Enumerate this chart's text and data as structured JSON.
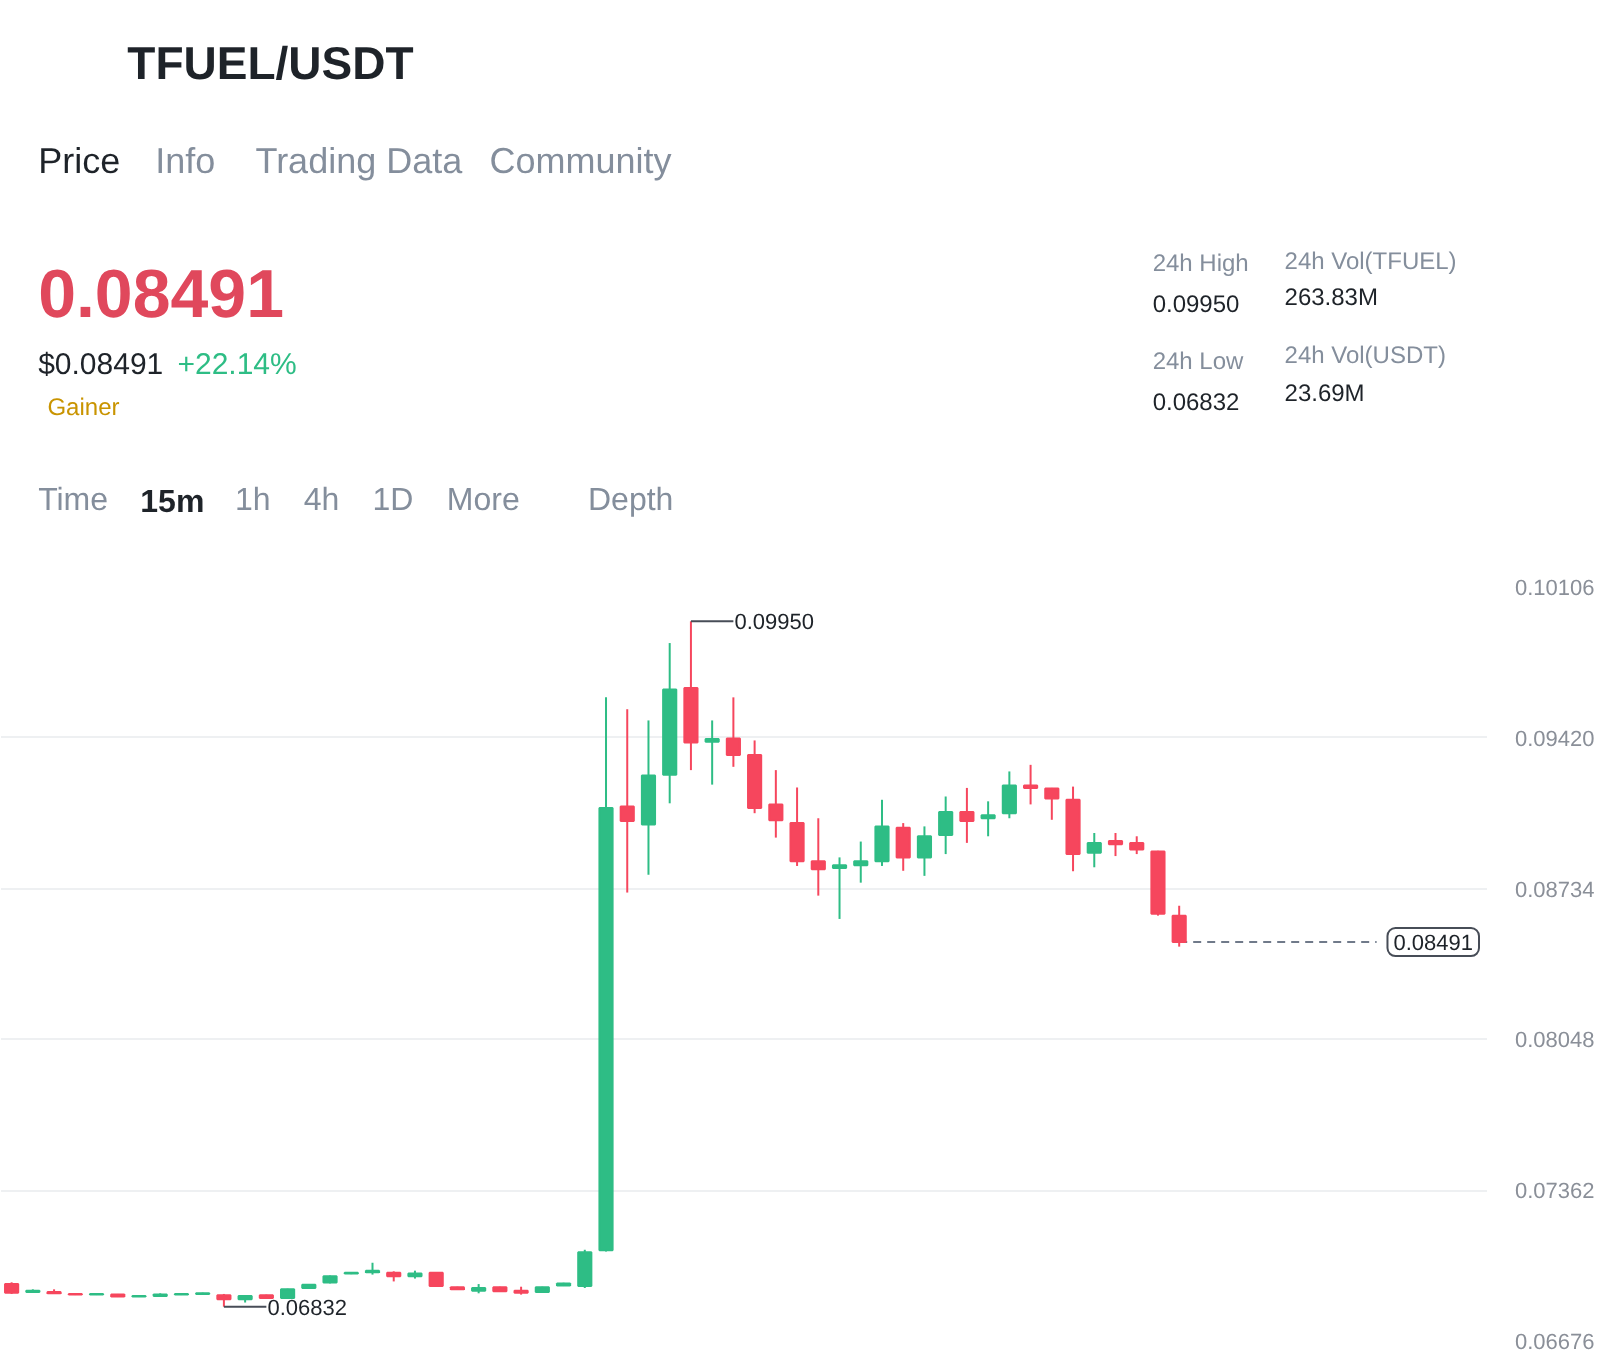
{
  "chart_data": {
    "type": "candlestick",
    "title": "TFUEL/USDT",
    "annotations": [
      "Price",
      "Info",
      "Trading Data",
      "Community",
      "0.08491",
      "$0.08491",
      "+22.14%",
      "Gainer",
      "24h High",
      "0.09950",
      "24h Low",
      "0.06832",
      "24h Vol(TFUEL)",
      "263.83M",
      "24h Vol(USDT)",
      "23.69M",
      "Time",
      "15m",
      "1h",
      "4h",
      "1D",
      "More",
      "Depth",
      "0.09950",
      "0.06832"
    ],
    "categories": [
      null,
      null,
      null,
      null,
      null,
      null,
      null,
      null,
      null,
      null,
      null,
      null,
      null,
      null,
      null,
      null,
      null,
      null,
      null,
      null,
      null,
      null,
      null,
      null,
      null,
      null,
      null,
      null,
      null,
      null,
      null,
      null,
      null,
      null,
      null,
      null,
      null,
      null,
      null,
      null,
      null,
      null,
      null,
      null,
      null,
      null,
      null,
      null,
      null,
      null,
      null,
      null,
      null,
      null,
      null,
      null,
      null,
      null,
      null,
      null,
      null,
      null,
      null,
      null,
      null,
      null,
      null,
      null,
      null,
      null
    ],
    "ohlc": [
      [
        0.06935,
        0.06943,
        0.0689,
        0.06896
      ],
      [
        0.06899,
        0.06911,
        0.06896,
        0.06905
      ],
      [
        0.06899,
        0.06911,
        0.0689,
        0.06893
      ],
      [
        0.0689,
        0.06893,
        0.06885,
        0.06887
      ],
      [
        0.06887,
        0.06893,
        0.06885,
        0.0689
      ],
      [
        0.06887,
        0.0689,
        0.06876,
        0.06878
      ],
      [
        0.06878,
        0.06885,
        0.06876,
        0.06881
      ],
      [
        0.06881,
        0.06893,
        0.06878,
        0.06887
      ],
      [
        0.06887,
        0.06893,
        0.06885,
        0.0689
      ],
      [
        0.0689,
        0.06896,
        0.06887,
        0.06893
      ],
      [
        0.06884,
        0.0689,
        0.06832,
        0.06866
      ],
      [
        0.06866,
        0.06884,
        0.06851,
        0.06881
      ],
      [
        0.06884,
        0.06887,
        0.06869,
        0.06872
      ],
      [
        0.06872,
        0.06914,
        0.06869,
        0.06911
      ],
      [
        0.06917,
        0.06935,
        0.06914,
        0.06932
      ],
      [
        0.06942,
        0.06974,
        0.06938,
        0.06971
      ],
      [
        0.06983,
        0.0699,
        0.0698,
        0.06987
      ],
      [
        0.06989,
        0.07032,
        0.06978,
        0.06996
      ],
      [
        0.06987,
        0.06993,
        0.06947,
        0.06971
      ],
      [
        0.06971,
        0.06996,
        0.0696,
        0.06983
      ],
      [
        0.06987,
        0.0699,
        0.06923,
        0.06926
      ],
      [
        0.0692,
        0.06923,
        0.06908,
        0.06911
      ],
      [
        0.06905,
        0.06935,
        0.06893,
        0.06917
      ],
      [
        0.0692,
        0.06923,
        0.06899,
        0.06902
      ],
      [
        0.06905,
        0.06923,
        0.06887,
        0.06896
      ],
      [
        0.06899,
        0.06923,
        0.06896,
        0.0692
      ],
      [
        0.06929,
        0.06941,
        0.06926,
        0.06938
      ],
      [
        0.06926,
        0.07091,
        0.06917,
        0.0708
      ],
      [
        0.07089,
        0.09604,
        0.07083,
        0.09101
      ],
      [
        0.09108,
        0.0955,
        0.08716,
        0.09041
      ],
      [
        0.09026,
        0.09499,
        0.08797,
        0.09249
      ],
      [
        0.09252,
        0.09851,
        0.09122,
        0.0964
      ],
      [
        0.09646,
        0.0995,
        0.09273,
        0.09399
      ],
      [
        0.09402,
        0.09499,
        0.09207,
        0.09415
      ],
      [
        0.09417,
        0.09604,
        0.09288,
        0.09342
      ],
      [
        0.09342,
        0.09408,
        0.09077,
        0.09101
      ],
      [
        0.09117,
        0.09273,
        0.08966,
        0.09045
      ],
      [
        0.09032,
        0.09194,
        0.08837,
        0.08858
      ],
      [
        0.08858,
        0.09054,
        0.08702,
        0.08822
      ],
      [
        0.08828,
        0.08876,
        0.08596,
        0.0884
      ],
      [
        0.0884,
        0.08948,
        0.08761,
        0.08858
      ],
      [
        0.08858,
        0.09138,
        0.08837,
        0.09017
      ],
      [
        0.09011,
        0.09032,
        0.08815,
        0.08876
      ],
      [
        0.08876,
        0.09017,
        0.08792,
        0.08972
      ],
      [
        0.08978,
        0.09153,
        0.08891,
        0.09083
      ],
      [
        0.09083,
        0.09192,
        0.08942,
        0.09041
      ],
      [
        0.09054,
        0.09131,
        0.08972,
        0.09068
      ],
      [
        0.09077,
        0.09267,
        0.09054,
        0.09203
      ],
      [
        0.09203,
        0.09297,
        0.09117,
        0.09192
      ],
      [
        0.09189,
        0.09192,
        0.09047,
        0.09144
      ],
      [
        0.09138,
        0.09198,
        0.08813,
        0.08891
      ],
      [
        0.08897,
        0.08987,
        0.08831,
        0.08942
      ],
      [
        0.08951,
        0.08987,
        0.08882,
        0.08936
      ],
      [
        0.08942,
        0.08972,
        0.08891,
        0.08912
      ],
      [
        0.08903,
        0.08906,
        0.08611,
        0.0862
      ],
      [
        0.08611,
        0.08656,
        0.0847,
        0.08491
      ],
      null,
      null,
      null,
      null,
      null,
      null,
      null,
      null,
      null,
      null,
      null,
      null,
      null,
      null
    ],
    "colors": [
      "#f6465d",
      "#2ebd85",
      "#f6465d",
      "#f6465d",
      "#2ebd85",
      "#f6465d",
      "#2ebd85",
      "#2ebd85",
      "#2ebd85",
      "#2ebd85",
      "#f6465d",
      "#2ebd85",
      "#f6465d",
      "#2ebd85",
      "#2ebd85",
      "#2ebd85",
      "#2ebd85",
      "#2ebd85",
      "#f6465d",
      "#2ebd85",
      "#f6465d",
      "#f6465d",
      "#2ebd85",
      "#f6465d",
      "#f6465d",
      "#2ebd85",
      "#2ebd85",
      "#2ebd85",
      "#2ebd85",
      "#f6465d",
      "#2ebd85",
      "#2ebd85",
      "#f6465d",
      "#2ebd85",
      "#f6465d",
      "#f6465d",
      "#f6465d",
      "#f6465d",
      "#f6465d",
      "#2ebd85",
      "#2ebd85",
      "#2ebd85",
      "#f6465d",
      "#2ebd85",
      "#2ebd85",
      "#f6465d",
      "#2ebd85",
      "#2ebd85",
      "#f6465d",
      "#f6465d",
      "#f6465d",
      "#2ebd85",
      "#f6465d",
      "#f6465d",
      "#f6465d",
      "#f6465d",
      null,
      null,
      null,
      null,
      null,
      null,
      null,
      null,
      null,
      null,
      null,
      null,
      null,
      null
    ],
    "ylim": [
      0.06676,
      0.10106
    ],
    "yticks": [
      0.10106,
      {
        "value": 0.0942,
        "label": "0.09420"
      },
      0.08734,
      0.08048,
      0.07362,
      0.06676
    ],
    "grid": "y",
    "tick_labels": "y",
    "ref_lines": [
      {
        "axis": "y",
        "value": 0.08491,
        "label": "0.08491",
        "line_style": "dashed",
        "color": "#707a8a"
      }
    ]
  }
}
